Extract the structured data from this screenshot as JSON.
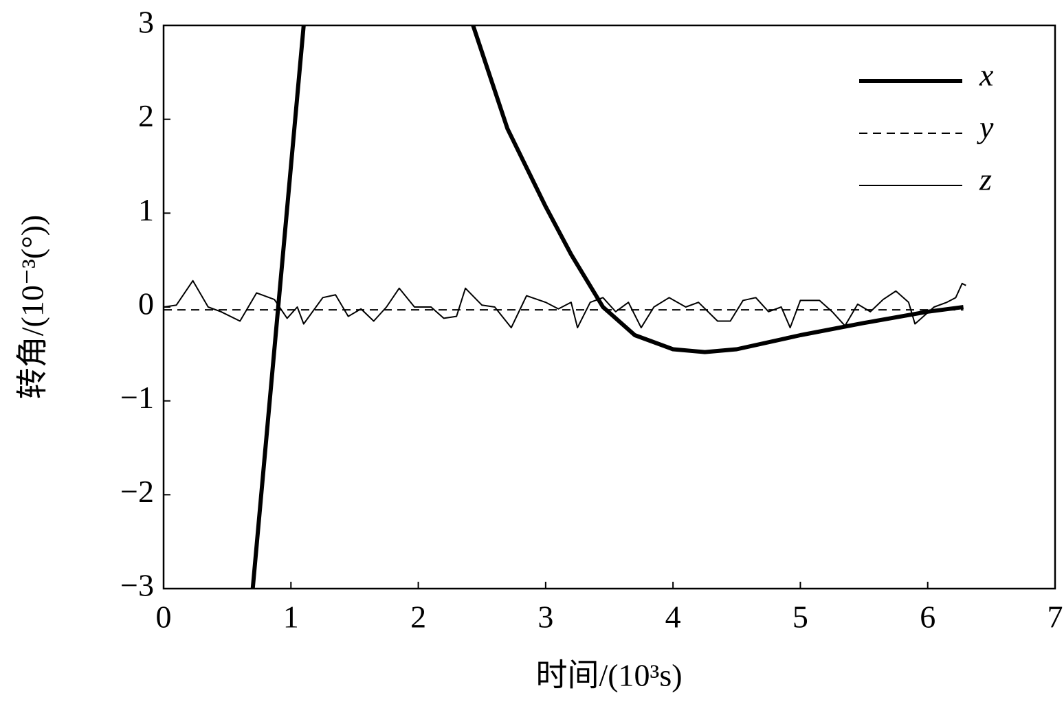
{
  "chart_data": {
    "type": "line",
    "xlabel": "时间/(10³s)",
    "ylabel": "转角/(10⁻³(°))",
    "xlim": [
      0,
      7
    ],
    "ylim": [
      -3,
      3
    ],
    "xticks": [
      0,
      1,
      2,
      3,
      4,
      5,
      6,
      7
    ],
    "yticks": [
      {
        "value": -3,
        "label": "−3"
      },
      {
        "value": -2,
        "label": "−2"
      },
      {
        "value": -1,
        "label": "−1"
      },
      0,
      1,
      2,
      3
    ],
    "legend": "upper right",
    "series": [
      {
        "name": "x",
        "color": "#000000",
        "width": 6,
        "dash": "none",
        "x": [
          0.7,
          1.1,
          1.8,
          2.43,
          2.7,
          3.0,
          3.2,
          3.45,
          3.7,
          4.0,
          4.25,
          4.5,
          5.0,
          5.5,
          6.0,
          6.28
        ],
        "values": [
          -3,
          3,
          null,
          3,
          1.9,
          1.07,
          0.56,
          0,
          -0.3,
          -0.45,
          -0.48,
          -0.45,
          -0.3,
          -0.17,
          -0.05,
          0
        ]
      },
      {
        "name": "y",
        "color": "#000000",
        "width": 2,
        "dash": "12 8",
        "x": [
          0,
          6.28
        ],
        "values": [
          -0.03,
          -0.03
        ]
      },
      {
        "name": "z",
        "color": "#000000",
        "width": 2,
        "dash": "none",
        "x": [
          0,
          0.1,
          0.23,
          0.35,
          0.45,
          0.6,
          0.73,
          0.87,
          0.97,
          1.05,
          1.1,
          1.25,
          1.35,
          1.45,
          1.55,
          1.65,
          1.75,
          1.85,
          1.97,
          2.1,
          2.2,
          2.3,
          2.37,
          2.5,
          2.6,
          2.73,
          2.85,
          3.0,
          3.1,
          3.2,
          3.25,
          3.35,
          3.45,
          3.55,
          3.65,
          3.75,
          3.85,
          3.97,
          4.1,
          4.2,
          4.35,
          4.45,
          4.55,
          4.65,
          4.75,
          4.85,
          4.92,
          5.0,
          5.15,
          5.25,
          5.35,
          5.45,
          5.55,
          5.65,
          5.75,
          5.85,
          5.9,
          6.05,
          6.15,
          6.22,
          6.27,
          6.3
        ],
        "values": [
          0,
          0.02,
          0.28,
          0,
          -0.05,
          -0.15,
          0.15,
          0.08,
          -0.12,
          0,
          -0.18,
          0.1,
          0.13,
          -0.1,
          -0.02,
          -0.15,
          0,
          0.2,
          0,
          0,
          -0.12,
          -0.1,
          0.2,
          0.02,
          0,
          -0.22,
          0.12,
          0.05,
          -0.02,
          0.05,
          -0.22,
          0.05,
          0.1,
          -0.05,
          0.05,
          -0.22,
          0,
          0.1,
          0,
          0.05,
          -0.15,
          -0.15,
          0.07,
          0.1,
          -0.05,
          0,
          -0.22,
          0.07,
          0.07,
          -0.05,
          -0.2,
          0.03,
          -0.05,
          0.08,
          0.17,
          0.05,
          -0.18,
          0,
          0.05,
          0.1,
          0.25,
          0.23
        ]
      }
    ]
  }
}
